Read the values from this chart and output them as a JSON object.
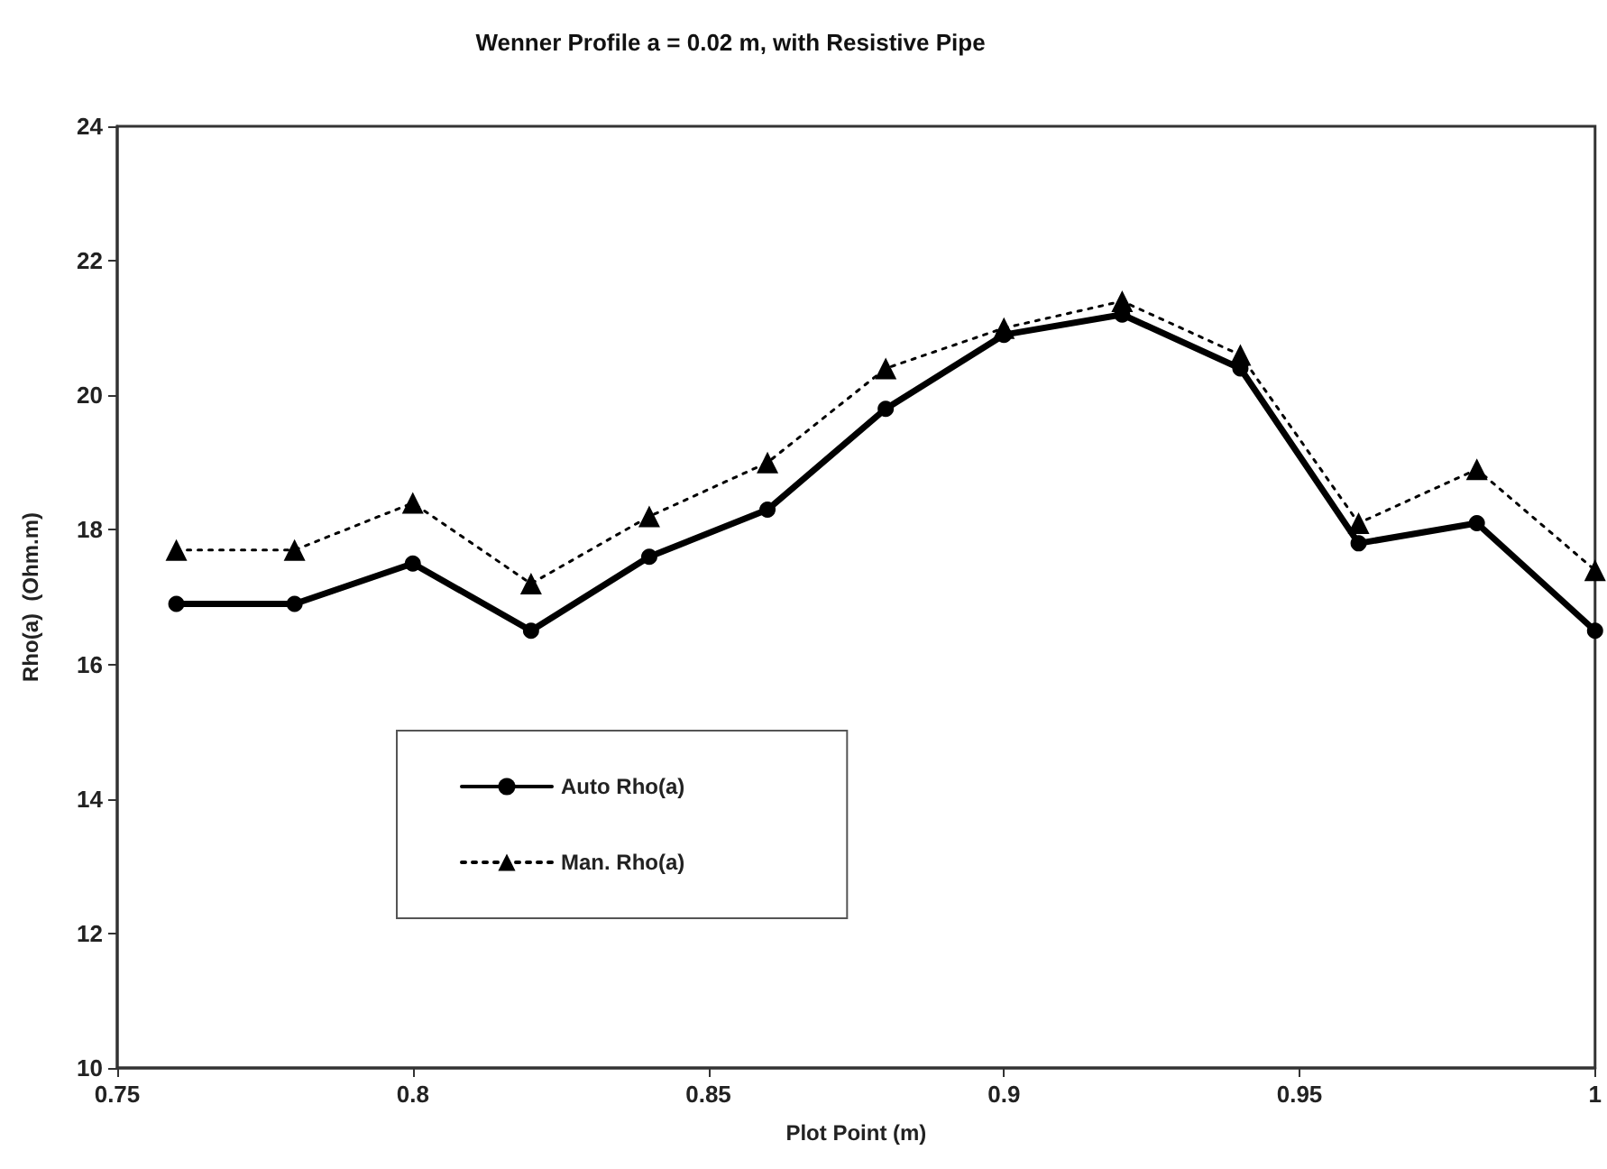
{
  "chart_data": {
    "type": "line",
    "title": "Wenner Profile a = 0.02 m, with Resistive Pipe",
    "xlabel": "Plot Point (m)",
    "ylabel": "Rho(a)  (Ohm.m)",
    "x": [
      0.76,
      0.78,
      0.8,
      0.82,
      0.84,
      0.86,
      0.88,
      0.9,
      0.92,
      0.94,
      0.96,
      0.98,
      1.0
    ],
    "xlim": [
      0.75,
      1
    ],
    "xticks": [
      0.75,
      0.8,
      0.85,
      0.9,
      0.95,
      1
    ],
    "ylim": [
      10,
      24
    ],
    "yticks": [
      10,
      12,
      14,
      16,
      18,
      20,
      22,
      24
    ],
    "grid": false,
    "legend": "bottom left",
    "series": [
      {
        "name": "Auto Rho(a)",
        "color": "#000000",
        "marker": "circle",
        "line_style": "solid",
        "values": [
          16.9,
          16.9,
          17.5,
          16.5,
          17.6,
          18.3,
          19.8,
          20.9,
          21.2,
          20.4,
          17.8,
          18.1,
          16.5
        ]
      },
      {
        "name": "Man. Rho(a)",
        "color": "#000000",
        "marker": "triangle",
        "line_style": "dotted",
        "values": [
          17.7,
          17.7,
          18.4,
          17.2,
          18.2,
          19.0,
          20.4,
          21.0,
          21.4,
          20.6,
          18.1,
          18.9,
          17.4
        ]
      }
    ]
  }
}
